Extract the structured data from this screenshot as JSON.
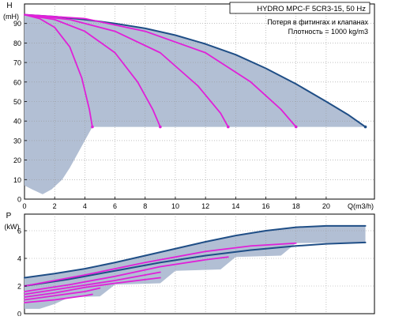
{
  "colors": {
    "area": "#b2bfd4",
    "curve_blue": "#1f4e86",
    "curve_magenta": "#e020d8",
    "grid": "#9a9a9a",
    "axis": "#000000"
  },
  "chart_data": [
    {
      "type": "line",
      "name": "head-chart",
      "ylabel": "H",
      "yunit": "(mH)",
      "xlabel": "Q(m3/h)",
      "xlim": [
        0,
        23.2
      ],
      "ylim": [
        0,
        100
      ],
      "xticks": [
        0,
        2,
        4,
        6,
        8,
        10,
        12,
        14,
        16,
        18,
        20
      ],
      "yticks": [
        0,
        10,
        20,
        30,
        40,
        50,
        60,
        70,
        80,
        90
      ],
      "legend_box": {
        "title": "HYDRO MPC-F 5CR3-15, 50 Hz",
        "lines": [
          "Потеря в фитингах и клапанах",
          "Плотность = 1000 kg/m3"
        ]
      },
      "shaded_region": {
        "upper": [
          [
            0,
            94.5
          ],
          [
            2,
            93.5
          ],
          [
            4,
            92
          ],
          [
            6,
            90
          ],
          [
            8,
            87.5
          ],
          [
            10,
            84
          ],
          [
            12,
            79.5
          ],
          [
            14,
            74
          ],
          [
            16,
            67
          ],
          [
            18,
            59
          ],
          [
            20,
            50
          ],
          [
            21.5,
            43
          ],
          [
            22.6,
            37
          ]
        ],
        "plateau": 37,
        "lower": [
          [
            4.5,
            37
          ],
          [
            4,
            30
          ],
          [
            3.5,
            23
          ],
          [
            3,
            16
          ],
          [
            2.5,
            10
          ],
          [
            1.8,
            5
          ],
          [
            1.2,
            2.5
          ],
          [
            0.5,
            5
          ],
          [
            0,
            7
          ]
        ]
      },
      "series": [
        {
          "color": "#1f4e86",
          "points": [
            [
              0,
              94.5
            ],
            [
              2,
              93.5
            ],
            [
              4,
              92
            ],
            [
              6,
              90
            ],
            [
              8,
              87.5
            ],
            [
              10,
              84
            ],
            [
              12,
              79.5
            ],
            [
              14,
              74
            ],
            [
              16,
              67
            ],
            [
              18,
              59
            ],
            [
              20,
              50
            ],
            [
              21.5,
              43
            ],
            [
              22.6,
              37
            ]
          ]
        },
        {
          "color": "#e020d8",
          "points": [
            [
              0,
              94.5
            ],
            [
              1,
              92.5
            ],
            [
              2,
              88
            ],
            [
              3,
              78
            ],
            [
              3.8,
              62
            ],
            [
              4.3,
              46
            ],
            [
              4.5,
              37
            ]
          ]
        },
        {
          "color": "#e020d8",
          "points": [
            [
              0,
              94.5
            ],
            [
              2,
              92
            ],
            [
              4,
              86
            ],
            [
              6,
              75
            ],
            [
              7.5,
              60
            ],
            [
              8.5,
              46
            ],
            [
              9,
              37
            ]
          ]
        },
        {
          "color": "#e020d8",
          "points": [
            [
              0,
              94.5
            ],
            [
              3,
              92
            ],
            [
              6,
              86
            ],
            [
              9,
              75
            ],
            [
              11.5,
              58
            ],
            [
              13,
              44
            ],
            [
              13.5,
              37
            ]
          ]
        },
        {
          "color": "#e020d8",
          "points": [
            [
              0,
              94.5
            ],
            [
              4,
              92.5
            ],
            [
              8,
              86
            ],
            [
              12,
              75
            ],
            [
              15,
              60
            ],
            [
              17,
              46
            ],
            [
              18,
              37
            ]
          ]
        }
      ]
    },
    {
      "type": "line",
      "name": "power-chart",
      "ylabel": "P",
      "yunit": "(kW)",
      "xlim": [
        0,
        23.2
      ],
      "ylim": [
        0,
        7.2
      ],
      "yticks": [
        0,
        2,
        4,
        6
      ],
      "shaded_region": {
        "upper": [
          [
            0,
            2.6
          ],
          [
            2,
            2.9
          ],
          [
            4,
            3.25
          ],
          [
            6,
            3.7
          ],
          [
            8,
            4.2
          ],
          [
            10,
            4.7
          ],
          [
            12,
            5.2
          ],
          [
            14,
            5.65
          ],
          [
            16,
            6.0
          ],
          [
            18,
            6.25
          ],
          [
            20,
            6.35
          ],
          [
            22.6,
            6.35
          ]
        ],
        "lower": [
          [
            22.6,
            5.15
          ],
          [
            18,
            5.1
          ],
          [
            17,
            4.2
          ],
          [
            14,
            4.1
          ],
          [
            13,
            3.2
          ],
          [
            10,
            3.1
          ],
          [
            9,
            2.2
          ],
          [
            6,
            2.1
          ],
          [
            5,
            1.25
          ],
          [
            3,
            1.2
          ],
          [
            2,
            0.7
          ],
          [
            1,
            0.35
          ],
          [
            0,
            0.35
          ]
        ]
      },
      "series": [
        {
          "color": "#1f4e86",
          "points": [
            [
              0,
              2.6
            ],
            [
              2,
              2.9
            ],
            [
              4,
              3.25
            ],
            [
              6,
              3.7
            ],
            [
              8,
              4.2
            ],
            [
              10,
              4.7
            ],
            [
              12,
              5.2
            ],
            [
              14,
              5.65
            ],
            [
              16,
              6.0
            ],
            [
              18,
              6.25
            ],
            [
              20,
              6.35
            ],
            [
              22.6,
              6.35
            ]
          ]
        },
        {
          "color": "#1f4e86",
          "points": [
            [
              0,
              2.0
            ],
            [
              3,
              2.5
            ],
            [
              6,
              3.1
            ],
            [
              9,
              3.7
            ],
            [
              12,
              4.2
            ],
            [
              15,
              4.6
            ],
            [
              18,
              4.9
            ],
            [
              20,
              5.05
            ],
            [
              22.6,
              5.15
            ]
          ]
        },
        {
          "color": "#e020d8",
          "points": [
            [
              0,
              2.0
            ],
            [
              4,
              2.8
            ],
            [
              8,
              3.7
            ],
            [
              12,
              4.5
            ],
            [
              15,
              4.9
            ],
            [
              18,
              5.1
            ]
          ]
        },
        {
          "color": "#e020d8",
          "points": [
            [
              0,
              1.6
            ],
            [
              3,
              2.1
            ],
            [
              6,
              2.7
            ],
            [
              9,
              3.4
            ],
            [
              12,
              3.9
            ],
            [
              13.5,
              4.1
            ]
          ]
        },
        {
          "color": "#e020d8",
          "points": [
            [
              0,
              1.4
            ],
            [
              3,
              1.9
            ],
            [
              6,
              2.4
            ],
            [
              8,
              2.8
            ],
            [
              9,
              3.0
            ]
          ]
        },
        {
          "color": "#e020d8",
          "points": [
            [
              0,
              1.2
            ],
            [
              2,
              1.5
            ],
            [
              4,
              1.9
            ],
            [
              6,
              2.2
            ],
            [
              9,
              2.6
            ]
          ]
        },
        {
          "color": "#e020d8",
          "points": [
            [
              0,
              1.0
            ],
            [
              2,
              1.3
            ],
            [
              4,
              1.6
            ],
            [
              5,
              1.85
            ]
          ]
        },
        {
          "color": "#e020d8",
          "points": [
            [
              0,
              0.8
            ],
            [
              2,
              1.0
            ],
            [
              4,
              1.3
            ],
            [
              4.5,
              1.4
            ]
          ]
        }
      ]
    }
  ]
}
